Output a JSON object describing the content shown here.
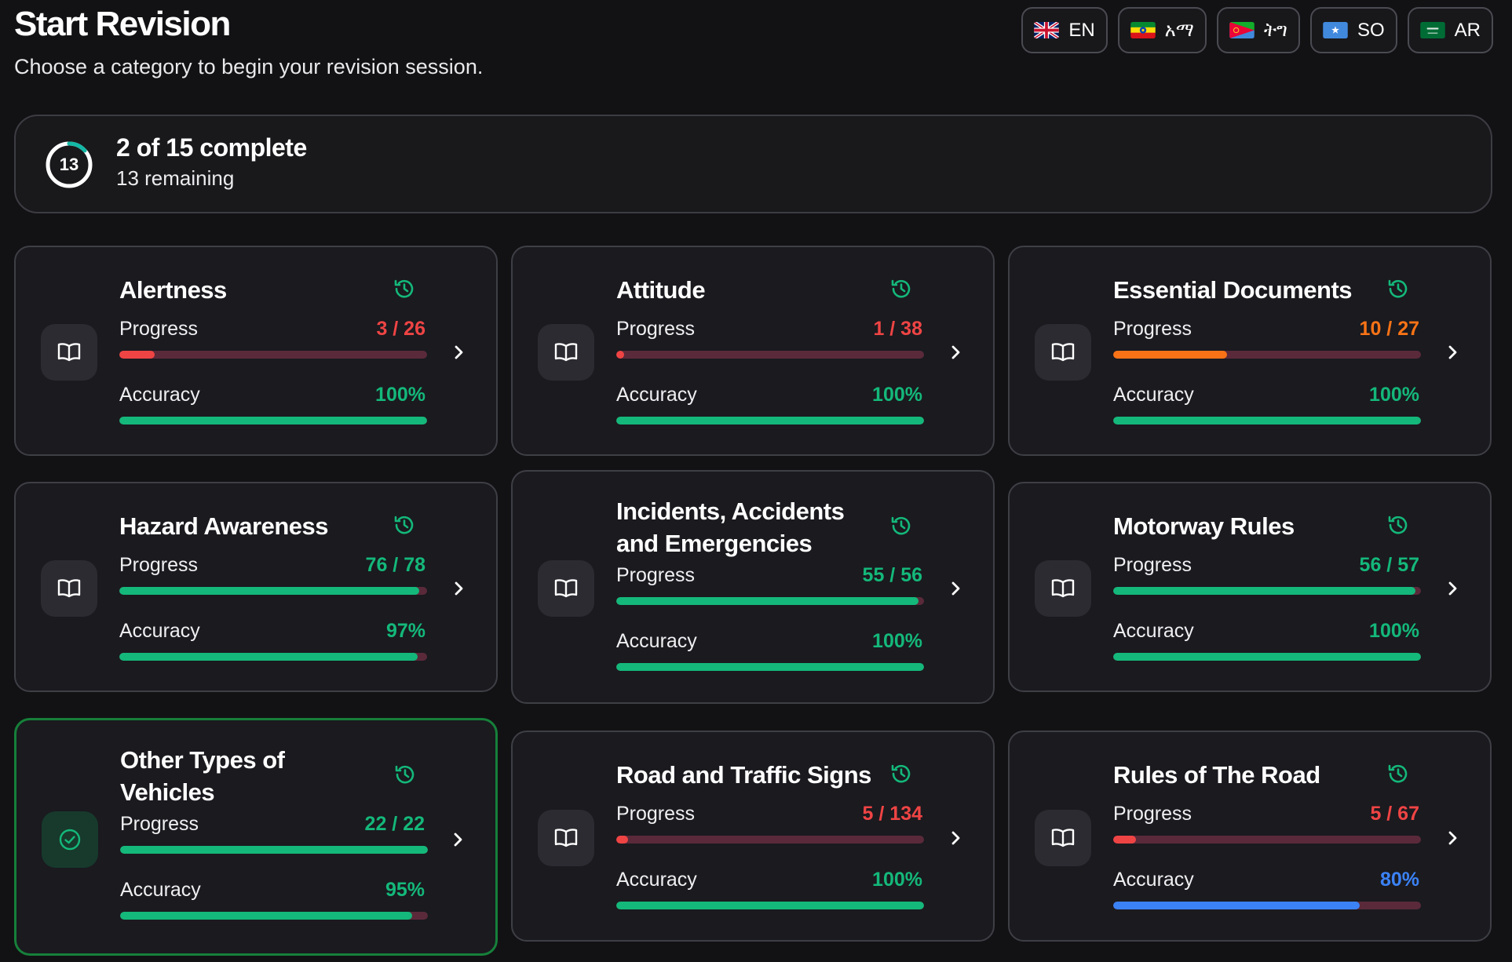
{
  "header": {
    "title": "Start Revision",
    "subtitle": "Choose a category to begin your revision session."
  },
  "languages": [
    {
      "label": "EN",
      "flag": "uk"
    },
    {
      "label": "አማ",
      "flag": "et"
    },
    {
      "label": "ትግ",
      "flag": "er"
    },
    {
      "label": "SO",
      "flag": "so"
    },
    {
      "label": "AR",
      "flag": "sa"
    }
  ],
  "summary": {
    "ring_value": "13",
    "completed_fraction": 0.133,
    "headline": "2 of 15 complete",
    "remaining": "13 remaining"
  },
  "colors": {
    "accent_green": "#14b87a",
    "accent_red": "#ef4444",
    "accent_orange": "#f97316",
    "accent_blue": "#3b82f6",
    "track_red": "#5a2a3a",
    "done_border": "#16803a"
  },
  "labels": {
    "progress": "Progress",
    "accuracy": "Accuracy"
  },
  "cards": [
    {
      "title": "Alertness",
      "progress_text": "3 / 26",
      "progress": 0.115,
      "progress_color": "#ef4444",
      "accuracy_text": "100%",
      "accuracy": 1.0,
      "accuracy_color": "#14b87a",
      "done": false
    },
    {
      "title": "Attitude",
      "progress_text": "1 / 38",
      "progress": 0.026,
      "progress_color": "#ef4444",
      "accuracy_text": "100%",
      "accuracy": 1.0,
      "accuracy_color": "#14b87a",
      "done": false
    },
    {
      "title": "Essential Documents",
      "progress_text": "10 / 27",
      "progress": 0.37,
      "progress_color": "#f97316",
      "accuracy_text": "100%",
      "accuracy": 1.0,
      "accuracy_color": "#14b87a",
      "done": false
    },
    {
      "title": "Hazard Awareness",
      "progress_text": "76 / 78",
      "progress": 0.974,
      "progress_color": "#14b87a",
      "accuracy_text": "97%",
      "accuracy": 0.97,
      "accuracy_color": "#14b87a",
      "done": false
    },
    {
      "title": "Incidents, Accidents and Emergencies",
      "progress_text": "55 / 56",
      "progress": 0.982,
      "progress_color": "#14b87a",
      "accuracy_text": "100%",
      "accuracy": 1.0,
      "accuracy_color": "#14b87a",
      "done": false
    },
    {
      "title": "Motorway Rules",
      "progress_text": "56 / 57",
      "progress": 0.982,
      "progress_color": "#14b87a",
      "accuracy_text": "100%",
      "accuracy": 1.0,
      "accuracy_color": "#14b87a",
      "done": false
    },
    {
      "title": "Other Types of Vehicles",
      "progress_text": "22 / 22",
      "progress": 1.0,
      "progress_color": "#14b87a",
      "accuracy_text": "95%",
      "accuracy": 0.95,
      "accuracy_color": "#14b87a",
      "done": true
    },
    {
      "title": "Road and Traffic Signs",
      "progress_text": "5 / 134",
      "progress": 0.037,
      "progress_color": "#ef4444",
      "accuracy_text": "100%",
      "accuracy": 1.0,
      "accuracy_color": "#14b87a",
      "done": false
    },
    {
      "title": "Rules of The Road",
      "progress_text": "5 / 67",
      "progress": 0.075,
      "progress_color": "#ef4444",
      "accuracy_text": "80%",
      "accuracy": 0.8,
      "accuracy_color": "#3b82f6",
      "done": false
    }
  ]
}
